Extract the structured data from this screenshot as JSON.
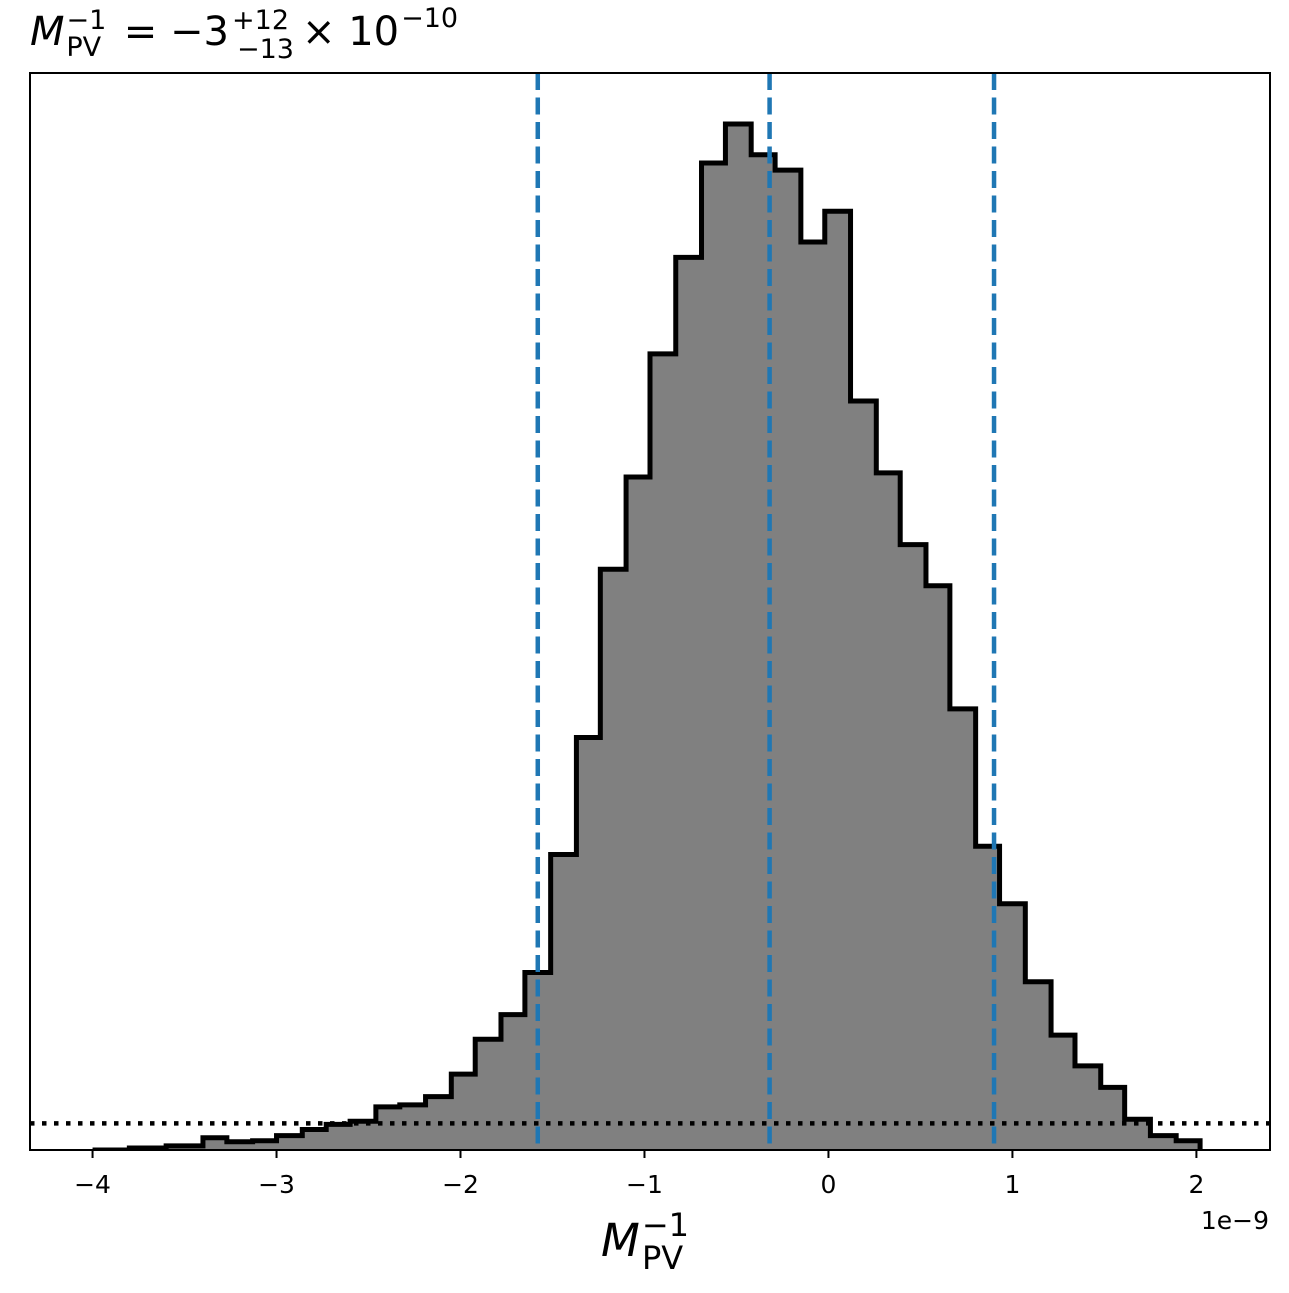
{
  "chart_data": {
    "type": "histogram",
    "title": {
      "symbol": "M",
      "symbol_sup": "−1",
      "symbol_sub": "PV",
      "equals": " = −3",
      "err_plus": "+12",
      "err_minus": "−13",
      "times": "× 10",
      "exp": "−10"
    },
    "xlabel": {
      "symbol": "M",
      "sup": "−1",
      "sub": "PV"
    },
    "x_offset_label": "1e−9",
    "x_scale": 1e-09,
    "xlim": [
      -4.34,
      2.4
    ],
    "ylim": [
      0,
      1.05
    ],
    "x_ticks": [
      -4,
      -3,
      -2,
      -1,
      0,
      1,
      2
    ],
    "x_tick_labels": [
      "−4",
      "−3",
      "−2",
      "−1",
      "0",
      "1",
      "2"
    ],
    "bin_edges": [
      -4.0,
      -3.8,
      -3.6,
      -3.4,
      -3.27,
      -3.13,
      -3.0,
      -2.86,
      -2.73,
      -2.6,
      -2.46,
      -2.33,
      -2.19,
      -2.05,
      -1.92,
      -1.78,
      -1.65,
      -1.51,
      -1.37,
      -1.24,
      -1.1,
      -0.97,
      -0.83,
      -0.69,
      -0.56,
      -0.42,
      -0.29,
      -0.15,
      -0.02,
      0.12,
      0.26,
      0.39,
      0.53,
      0.66,
      0.8,
      0.93,
      1.07,
      1.21,
      1.34,
      1.48,
      1.61,
      1.75,
      1.89,
      2.02
    ],
    "counts": [
      0.0,
      0.002,
      0.004,
      0.012,
      0.008,
      0.009,
      0.014,
      0.02,
      0.025,
      0.028,
      0.042,
      0.044,
      0.052,
      0.074,
      0.108,
      0.132,
      0.173,
      0.288,
      0.402,
      0.566,
      0.656,
      0.776,
      0.87,
      0.962,
      1.0,
      0.97,
      0.955,
      0.885,
      0.915,
      0.73,
      0.66,
      0.59,
      0.55,
      0.43,
      0.296,
      0.24,
      0.164,
      0.112,
      0.082,
      0.061,
      0.03,
      0.014,
      0.009
    ],
    "fill_color": "#808080",
    "edge_color": "#000000",
    "vlines": [
      -1.58,
      -0.32,
      0.9
    ],
    "vline_color": "#1f77b4",
    "hline": 0.026,
    "grid": false
  }
}
